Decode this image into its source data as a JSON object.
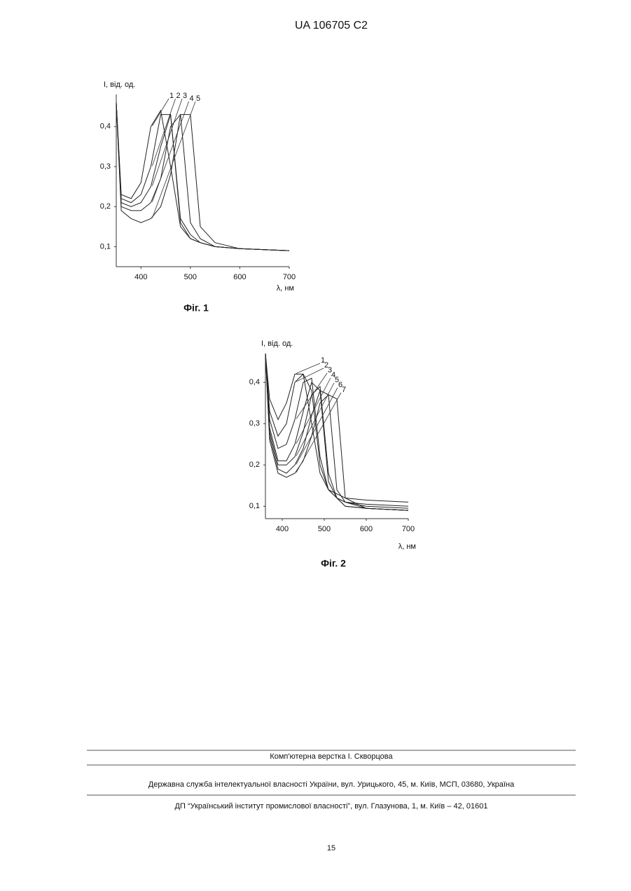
{
  "header": "UA   106705   C2",
  "chart_data": [
    {
      "type": "line",
      "title": "Фіг. 1",
      "y_label": "I, від. од.",
      "x_label": "λ, нм",
      "xlim": [
        350,
        700
      ],
      "ylim": [
        0.05,
        0.48
      ],
      "xticks": [
        400,
        500,
        600,
        700
      ],
      "yticks": [
        {
          "value": 0.1,
          "label": "0,1"
        },
        {
          "value": 0.2,
          "label": "0,2"
        },
        {
          "value": 0.3,
          "label": "0,3"
        },
        {
          "value": 0.4,
          "label": "0,4"
        }
      ],
      "x": [
        350,
        360,
        380,
        400,
        420,
        440,
        460,
        480,
        500,
        520,
        550,
        600,
        700
      ],
      "series": [
        {
          "name": "1",
          "color": "#222222",
          "values": [
            0.46,
            0.23,
            0.22,
            0.26,
            0.4,
            0.44,
            0.3,
            0.15,
            0.12,
            0.11,
            0.1,
            0.095,
            0.09
          ]
        },
        {
          "name": "2",
          "color": "#222222",
          "values": [
            0.46,
            0.22,
            0.21,
            0.23,
            0.3,
            0.43,
            0.43,
            0.16,
            0.12,
            0.11,
            0.1,
            0.095,
            0.09
          ]
        },
        {
          "name": "3",
          "color": "#222222",
          "values": [
            0.46,
            0.21,
            0.2,
            0.21,
            0.25,
            0.35,
            0.43,
            0.17,
            0.13,
            0.11,
            0.1,
            0.095,
            0.09
          ]
        },
        {
          "name": "4",
          "color": "#222222",
          "values": [
            0.46,
            0.2,
            0.19,
            0.19,
            0.21,
            0.27,
            0.4,
            0.43,
            0.16,
            0.12,
            0.1,
            0.095,
            0.09
          ]
        },
        {
          "name": "5",
          "color": "#222222",
          "values": [
            0.46,
            0.19,
            0.17,
            0.16,
            0.17,
            0.2,
            0.28,
            0.43,
            0.43,
            0.15,
            0.11,
            0.095,
            0.09
          ]
        }
      ]
    },
    {
      "type": "line",
      "title": "Фіг. 2",
      "y_label": "I, від. од.",
      "x_label": "λ, нм",
      "xlim": [
        360,
        700
      ],
      "ylim": [
        0.07,
        0.47
      ],
      "xticks": [
        400,
        500,
        600,
        700
      ],
      "yticks": [
        {
          "value": 0.1,
          "label": "0,1"
        },
        {
          "value": 0.2,
          "label": "0,2"
        },
        {
          "value": 0.3,
          "label": "0,3"
        },
        {
          "value": 0.4,
          "label": "0,4"
        }
      ],
      "x": [
        360,
        370,
        390,
        410,
        430,
        450,
        470,
        490,
        510,
        530,
        550,
        600,
        700
      ],
      "series": [
        {
          "name": "1",
          "color": "#222222",
          "values": [
            0.47,
            0.36,
            0.31,
            0.35,
            0.42,
            0.42,
            0.3,
            0.18,
            0.14,
            0.13,
            0.12,
            0.115,
            0.11
          ]
        },
        {
          "name": "2",
          "color": "#222222",
          "values": [
            0.47,
            0.33,
            0.27,
            0.3,
            0.4,
            0.42,
            0.38,
            0.2,
            0.14,
            0.12,
            0.11,
            0.105,
            0.1
          ]
        },
        {
          "name": "3",
          "color": "#222222",
          "values": [
            0.47,
            0.31,
            0.24,
            0.25,
            0.31,
            0.4,
            0.41,
            0.22,
            0.14,
            0.12,
            0.11,
            0.1,
            0.095
          ]
        },
        {
          "name": "4",
          "color": "#222222",
          "values": [
            0.47,
            0.29,
            0.21,
            0.21,
            0.25,
            0.33,
            0.4,
            0.38,
            0.16,
            0.12,
            0.1,
            0.095,
            0.09
          ]
        },
        {
          "name": "5",
          "color": "#222222",
          "values": [
            0.47,
            0.28,
            0.2,
            0.2,
            0.22,
            0.28,
            0.37,
            0.39,
            0.18,
            0.12,
            0.1,
            0.095,
            0.09
          ]
        },
        {
          "name": "6",
          "color": "#222222",
          "values": [
            0.47,
            0.27,
            0.19,
            0.18,
            0.2,
            0.24,
            0.32,
            0.38,
            0.37,
            0.14,
            0.11,
            0.095,
            0.09
          ]
        },
        {
          "name": "7",
          "color": "#222222",
          "values": [
            0.47,
            0.26,
            0.18,
            0.17,
            0.18,
            0.21,
            0.27,
            0.35,
            0.37,
            0.36,
            0.12,
            0.095,
            0.09
          ]
        }
      ]
    }
  ],
  "footer": {
    "layout": "Комп'ютерна верстка І. Скворцова",
    "office": "Державна служба інтелектуальної власності України, вул. Урицького, 45, м. Київ, МСП, 03680, Україна",
    "institute": "ДП “Український інститут промислової власності”, вул. Глазунова, 1, м. Київ – 42, 01601",
    "page": "15"
  }
}
